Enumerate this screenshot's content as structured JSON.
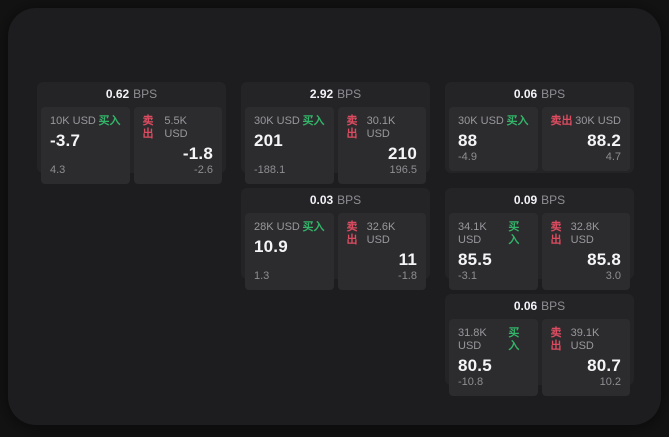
{
  "labels": {
    "bps": "BPS",
    "buy": "买入",
    "sell": "卖出"
  },
  "colors": {
    "outer_bg": "#131314",
    "panel_bg": "#1d1d1f",
    "card_bg": "#242427",
    "tile_bg": "#2c2c2e",
    "buy_green": "#33b469",
    "sell_red": "#dd4b60",
    "text_primary": "#f2f2f7",
    "text_secondary": "#8e8e93"
  },
  "cards": [
    {
      "bps": "0.62",
      "buy": {
        "size": "10K USD",
        "price": "-3.7",
        "delta": "4.3"
      },
      "sell": {
        "size": "5.5K USD",
        "price": "-1.8",
        "delta": "-2.6"
      }
    },
    {
      "bps": "2.92",
      "buy": {
        "size": "30K USD",
        "price": "201",
        "delta": "-188.1"
      },
      "sell": {
        "size": "30.1K USD",
        "price": "210",
        "delta": "196.5"
      }
    },
    {
      "bps": "0.06",
      "buy": {
        "size": "30K USD",
        "price": "88",
        "delta": "-4.9"
      },
      "sell": {
        "size": "30K USD",
        "price": "88.2",
        "delta": "4.7"
      }
    },
    {
      "bps": "0.03",
      "buy": {
        "size": "28K USD",
        "price": "10.9",
        "delta": "1.3"
      },
      "sell": {
        "size": "32.6K USD",
        "price": "11",
        "delta": "-1.8"
      }
    },
    {
      "bps": "0.09",
      "buy": {
        "size": "34.1K USD",
        "price": "85.5",
        "delta": "-3.1"
      },
      "sell": {
        "size": "32.8K USD",
        "price": "85.8",
        "delta": "3.0"
      }
    },
    {
      "bps": "0.06",
      "buy": {
        "size": "31.8K USD",
        "price": "80.5",
        "delta": "-10.8"
      },
      "sell": {
        "size": "39.1K USD",
        "price": "80.7",
        "delta": "10.2"
      }
    }
  ]
}
